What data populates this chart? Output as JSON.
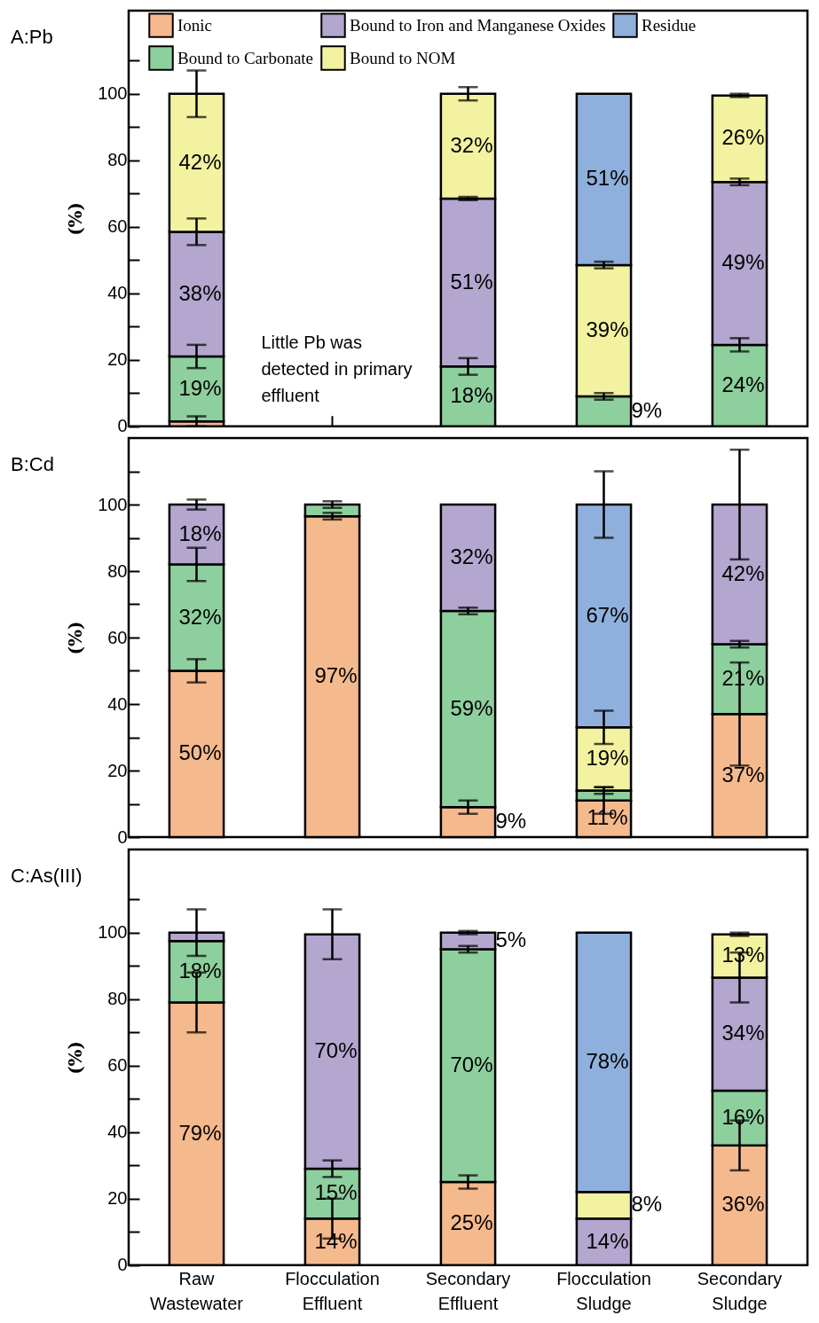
{
  "chart_data": [
    {
      "type": "bar",
      "stacked": true,
      "title": "A:Pb",
      "ylabel": "(%)",
      "categories": [
        null,
        null,
        null,
        null,
        null
      ],
      "ylim": [
        0,
        125
      ],
      "yticks": [
        0,
        {
          "value": 10,
          "label": null
        },
        20,
        {
          "value": 30,
          "label": null
        },
        40,
        {
          "value": 50,
          "label": null
        },
        60,
        {
          "value": 70,
          "label": null
        },
        80,
        {
          "value": 90,
          "label": null
        },
        100,
        {
          "value": 110,
          "label": null
        }
      ],
      "tick_labels": "y",
      "legend": "top",
      "annotations": [
        "Little Pb was detected in primary effluent"
      ],
      "series": [
        {
          "name": "Ionic",
          "color": "#f5b98e",
          "values": [
            1.5,
            null,
            null,
            null,
            null
          ],
          "errors": [
            1.5,
            null,
            null,
            null,
            null
          ],
          "value_labels": [
            null,
            null,
            null,
            null,
            null
          ]
        },
        {
          "name": "Bound to Carbonate",
          "color": "#8ecf9e",
          "values": [
            19.5,
            null,
            18,
            9,
            24.5
          ],
          "errors": [
            3.5,
            null,
            2.5,
            1,
            2
          ],
          "value_labels": [
            "19%",
            null,
            "18%",
            "9%",
            "24%"
          ]
        },
        {
          "name": "Bound to Iron and Manganese Oxides",
          "color": "#b3a6cf",
          "values": [
            37.5,
            null,
            50.5,
            null,
            49
          ],
          "errors": [
            4,
            null,
            0.5,
            null,
            1
          ],
          "value_labels": [
            "38%",
            null,
            "51%",
            null,
            "49%"
          ]
        },
        {
          "name": "Bound to NOM",
          "color": "#f2f2a0",
          "values": [
            41.5,
            null,
            31.5,
            39.5,
            26
          ],
          "errors": [
            7,
            null,
            2,
            1,
            0.5
          ],
          "value_labels": [
            "42%",
            null,
            "32%",
            "39%",
            "26%"
          ]
        },
        {
          "name": "Residue",
          "color": "#8fb0dc",
          "values": [
            null,
            null,
            null,
            51.5,
            null
          ],
          "errors": [
            null,
            null,
            null,
            null,
            null
          ],
          "value_labels": [
            null,
            null,
            null,
            "51%",
            null
          ]
        }
      ]
    },
    {
      "type": "bar",
      "stacked": true,
      "title": "B:Cd",
      "ylabel": "(%)",
      "categories": [
        null,
        null,
        null,
        null,
        null
      ],
      "ylim": [
        0,
        120
      ],
      "yticks": [
        0,
        {
          "value": 10,
          "label": null
        },
        20,
        {
          "value": 30,
          "label": null
        },
        40,
        {
          "value": 50,
          "label": null
        },
        60,
        {
          "value": 70,
          "label": null
        },
        80,
        {
          "value": 90,
          "label": null
        },
        100,
        {
          "value": 110,
          "label": null
        }
      ],
      "tick_labels": "y",
      "series": [
        {
          "color": "#f5b98e",
          "values": [
            50,
            96.5,
            9,
            11,
            37
          ],
          "errors": [
            3.5,
            1,
            2,
            4,
            15.5
          ],
          "value_labels": [
            "50%",
            "97%",
            "9%",
            "11%",
            "37%"
          ]
        },
        {
          "color": "#8ecf9e",
          "values": [
            32,
            3.5,
            59,
            3,
            21
          ],
          "errors": [
            5,
            1,
            1,
            1,
            1
          ],
          "value_labels": [
            "32%",
            null,
            "59%",
            null,
            "21%"
          ]
        },
        {
          "color": "#b3a6cf",
          "values": [
            18,
            null,
            32,
            null,
            42
          ],
          "errors": [
            1.5,
            null,
            null,
            null,
            16.5
          ],
          "value_labels": [
            "18%",
            null,
            "32%",
            null,
            "42%"
          ]
        },
        {
          "color": "#f2f2a0",
          "values": [
            null,
            null,
            null,
            19,
            null
          ],
          "errors": [
            null,
            null,
            null,
            5,
            null
          ],
          "value_labels": [
            null,
            null,
            null,
            "19%",
            null
          ]
        },
        {
          "color": "#8fb0dc",
          "values": [
            null,
            null,
            null,
            67,
            null
          ],
          "errors": [
            null,
            null,
            null,
            10,
            null
          ],
          "value_labels": [
            null,
            null,
            null,
            "67%",
            null
          ]
        }
      ]
    },
    {
      "type": "bar",
      "stacked": true,
      "title": "C:As(III)",
      "ylabel": "(%)",
      "categories": [
        "Raw Wastewater",
        "Flocculation Effluent",
        "Secondary Effluent",
        "Flocculation Sludge",
        "Secondary Sludge"
      ],
      "ylim": [
        0,
        125
      ],
      "yticks": [
        0,
        {
          "value": 10,
          "label": null
        },
        20,
        {
          "value": 30,
          "label": null
        },
        40,
        {
          "value": 50,
          "label": null
        },
        60,
        {
          "value": 70,
          "label": null
        },
        80,
        {
          "value": 90,
          "label": null
        },
        100,
        {
          "value": 110,
          "label": null
        }
      ],
      "series": [
        {
          "color": "#f5b98e",
          "values": [
            79,
            14,
            25,
            null,
            36
          ],
          "errors": [
            9,
            6,
            2,
            null,
            7.5
          ],
          "value_labels": [
            "79%",
            "14%",
            "25%",
            null,
            "36%"
          ]
        },
        {
          "color": "#8ecf9e",
          "values": [
            18.5,
            15,
            70,
            null,
            16.5
          ],
          "errors": [
            null,
            2.5,
            1,
            null,
            null
          ],
          "value_labels": [
            "18%",
            "15%",
            "70%",
            null,
            "16%"
          ]
        },
        {
          "color": "#b3a6cf",
          "values": [
            2.5,
            70.5,
            5,
            14,
            34
          ],
          "errors": [
            7,
            7.5,
            0.5,
            null,
            7.5
          ],
          "value_labels": [
            null,
            "70%",
            "5%",
            "14%",
            "34%"
          ]
        },
        {
          "color": "#f2f2a0",
          "values": [
            null,
            null,
            null,
            8,
            13
          ],
          "errors": [
            null,
            null,
            null,
            null,
            0.5
          ],
          "value_labels": [
            null,
            null,
            null,
            "8%",
            "13%"
          ]
        },
        {
          "color": "#8fb0dc",
          "values": [
            null,
            null,
            null,
            78,
            null
          ],
          "errors": [
            null,
            null,
            null,
            null,
            null
          ],
          "value_labels": [
            null,
            null,
            null,
            "78%",
            null
          ]
        }
      ]
    }
  ]
}
